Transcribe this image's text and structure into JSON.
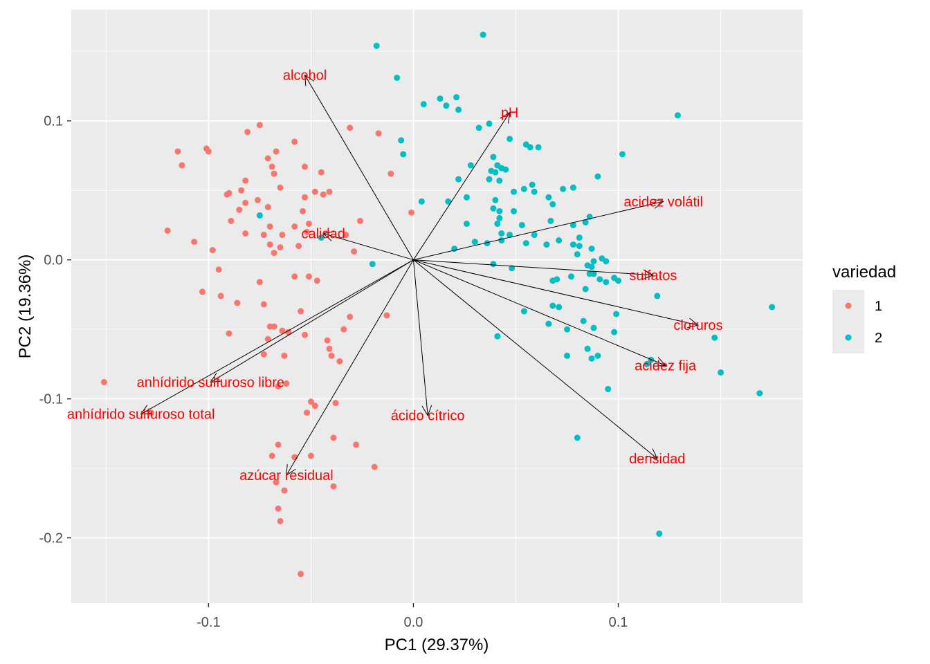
{
  "chart_data": {
    "type": "scatter",
    "subtype": "pca-biplot",
    "title": "",
    "xlabel": "PC1 (29.37%)",
    "ylabel": "PC2 (19.36%)",
    "xlim": [
      -0.167,
      0.19
    ],
    "ylim": [
      -0.247,
      0.18
    ],
    "x_ticks": [
      -0.1,
      0.0,
      0.1
    ],
    "x_tick_labels": [
      "-0.1",
      "0.0",
      "0.1"
    ],
    "y_ticks": [
      -0.2,
      -0.1,
      0.0,
      0.1
    ],
    "y_tick_labels": [
      "-0.2",
      "-0.1",
      "0.0",
      "0.1"
    ],
    "grid": true,
    "legend": {
      "title": "variedad",
      "position": "right",
      "entries": [
        {
          "label": "1",
          "color": "#F8766D"
        },
        {
          "label": "2",
          "color": "#00BFC4"
        }
      ]
    },
    "series": [
      {
        "name": "1",
        "color": "#F8766D",
        "points": [
          [
            -0.115,
            0.078
          ],
          [
            -0.113,
            0.068
          ],
          [
            -0.101,
            0.08
          ],
          [
            -0.1,
            0.078
          ],
          [
            -0.091,
            0.047
          ],
          [
            -0.09,
            0.048
          ],
          [
            -0.089,
            0.028
          ],
          [
            -0.085,
            0.036
          ],
          [
            -0.082,
            0.057
          ],
          [
            -0.084,
            0.05
          ],
          [
            -0.081,
            0.092
          ],
          [
            -0.082,
            0.041
          ],
          [
            -0.075,
            0.097
          ],
          [
            -0.071,
            0.073
          ],
          [
            -0.069,
            0.067
          ],
          [
            -0.068,
            0.062
          ],
          [
            -0.067,
            0.078
          ],
          [
            -0.065,
            0.052
          ],
          [
            -0.071,
            0.038
          ],
          [
            -0.07,
            0.024
          ],
          [
            -0.058,
            0.085
          ],
          [
            -0.053,
            0.067
          ],
          [
            -0.053,
            0.045
          ],
          [
            -0.051,
            0.026
          ],
          [
            -0.048,
            0.049
          ],
          [
            -0.045,
            0.063
          ],
          [
            -0.044,
            0.047
          ],
          [
            -0.041,
            0.049
          ],
          [
            -0.031,
            0.095
          ],
          [
            -0.017,
            0.091
          ],
          [
            -0.011,
            0.062
          ],
          [
            -0.001,
            0.034
          ],
          [
            -0.026,
            0.028
          ],
          [
            -0.033,
            0.018
          ],
          [
            -0.029,
            0.006
          ],
          [
            -0.052,
            0.02
          ],
          [
            -0.054,
            0.035
          ],
          [
            -0.056,
            0.01
          ],
          [
            -0.058,
            -0.012
          ],
          [
            -0.051,
            -0.012
          ],
          [
            -0.047,
            -0.015
          ],
          [
            -0.07,
            0.011
          ],
          [
            -0.068,
            0.005
          ],
          [
            -0.065,
            0.009
          ],
          [
            -0.064,
            0.018
          ],
          [
            -0.073,
            0.018
          ],
          [
            -0.075,
            -0.016
          ],
          [
            -0.082,
            0.019
          ],
          [
            -0.098,
            0.007
          ],
          [
            -0.12,
            0.021
          ],
          [
            -0.107,
            0.013
          ],
          [
            -0.103,
            -0.023
          ],
          [
            -0.095,
            -0.007
          ],
          [
            -0.094,
            -0.026
          ],
          [
            -0.086,
            -0.031
          ],
          [
            -0.073,
            -0.032
          ],
          [
            -0.07,
            -0.048
          ],
          [
            -0.068,
            -0.048
          ],
          [
            -0.064,
            -0.051
          ],
          [
            -0.055,
            -0.037
          ],
          [
            -0.053,
            -0.054
          ],
          [
            -0.042,
            -0.058
          ],
          [
            -0.041,
            -0.064
          ],
          [
            -0.036,
            -0.073
          ],
          [
            -0.031,
            -0.041
          ],
          [
            -0.013,
            -0.04
          ],
          [
            -0.09,
            -0.053
          ],
          [
            -0.073,
            -0.068
          ],
          [
            -0.071,
            -0.057
          ],
          [
            -0.063,
            -0.069
          ],
          [
            -0.066,
            -0.091
          ],
          [
            -0.062,
            -0.089
          ],
          [
            -0.05,
            -0.102
          ],
          [
            -0.052,
            -0.11
          ],
          [
            -0.048,
            -0.105
          ],
          [
            -0.038,
            -0.103
          ],
          [
            -0.039,
            -0.128
          ],
          [
            -0.028,
            -0.133
          ],
          [
            -0.019,
            -0.149
          ],
          [
            -0.066,
            -0.133
          ],
          [
            -0.069,
            -0.141
          ],
          [
            -0.058,
            -0.142
          ],
          [
            -0.05,
            -0.141
          ],
          [
            -0.067,
            -0.16
          ],
          [
            -0.063,
            -0.166
          ],
          [
            -0.039,
            -0.163
          ],
          [
            -0.066,
            -0.179
          ],
          [
            -0.065,
            -0.188
          ],
          [
            -0.055,
            -0.226
          ],
          [
            -0.151,
            -0.088
          ],
          [
            -0.128,
            -0.11
          ],
          [
            -0.034,
            -0.05
          ],
          [
            -0.04,
            -0.069
          ],
          [
            -0.061,
            -0.052
          ],
          [
            -0.076,
            0.043
          ],
          [
            -0.058,
            0.024
          ]
        ]
      },
      {
        "name": "2",
        "color": "#00BFC4",
        "points": [
          [
            0.034,
            0.162
          ],
          [
            -0.018,
            0.154
          ],
          [
            -0.008,
            0.131
          ],
          [
            0.013,
            0.116
          ],
          [
            0.021,
            0.117
          ],
          [
            0.016,
            0.111
          ],
          [
            0.022,
            0.108
          ],
          [
            0.005,
            0.112
          ],
          [
            -0.006,
            0.086
          ],
          [
            -0.005,
            0.076
          ],
          [
            0.032,
            0.095
          ],
          [
            0.047,
            0.087
          ],
          [
            0.055,
            0.083
          ],
          [
            0.057,
            0.081
          ],
          [
            0.061,
            0.081
          ],
          [
            0.129,
            0.104
          ],
          [
            0.102,
            0.076
          ],
          [
            0.037,
            0.098
          ],
          [
            0.028,
            0.068
          ],
          [
            0.039,
            0.074
          ],
          [
            0.041,
            0.068
          ],
          [
            0.045,
            0.065
          ],
          [
            0.04,
            0.063
          ],
          [
            0.043,
            0.066
          ],
          [
            0.038,
            0.064
          ],
          [
            0.022,
            0.058
          ],
          [
            0.037,
            0.058
          ],
          [
            0.042,
            0.057
          ],
          [
            0.058,
            0.054
          ],
          [
            0.054,
            0.051
          ],
          [
            0.073,
            0.051
          ],
          [
            0.078,
            0.052
          ],
          [
            0.09,
            0.06
          ],
          [
            0.049,
            0.049
          ],
          [
            0.059,
            0.049
          ],
          [
            0.026,
            0.045
          ],
          [
            0.04,
            0.043
          ],
          [
            0.066,
            0.045
          ],
          [
            0.068,
            0.04
          ],
          [
            0.017,
            0.042
          ],
          [
            0.004,
            0.042
          ],
          [
            0.039,
            0.037
          ],
          [
            0.042,
            0.035
          ],
          [
            0.049,
            0.035
          ],
          [
            0.042,
            0.03
          ],
          [
            0.026,
            0.026
          ],
          [
            0.041,
            0.026
          ],
          [
            0.053,
            0.025
          ],
          [
            0.067,
            0.028
          ],
          [
            0.078,
            0.025
          ],
          [
            0.084,
            0.027
          ],
          [
            0.086,
            0.031
          ],
          [
            0.043,
            0.019
          ],
          [
            0.047,
            0.018
          ],
          [
            0.059,
            0.018
          ],
          [
            0.081,
            0.016
          ],
          [
            0.078,
            0.011
          ],
          [
            0.081,
            0.01
          ],
          [
            0.071,
            0.014
          ],
          [
            0.065,
            0.011
          ],
          [
            0.055,
            0.012
          ],
          [
            0.043,
            0.014
          ],
          [
            0.036,
            0.012
          ],
          [
            0.03,
            0.013
          ],
          [
            0.02,
            0.008
          ],
          [
            0.08,
            0.004
          ],
          [
            0.087,
            0.008
          ],
          [
            0.092,
            0.001
          ],
          [
            0.088,
            -0.001
          ],
          [
            0.094,
            -0.001
          ],
          [
            0.085,
            -0.004
          ],
          [
            0.087,
            -0.005
          ],
          [
            0.086,
            -0.01
          ],
          [
            0.088,
            -0.01
          ],
          [
            0.091,
            -0.014
          ],
          [
            0.094,
            -0.016
          ],
          [
            0.098,
            -0.013
          ],
          [
            0.077,
            -0.012
          ],
          [
            0.07,
            -0.014
          ],
          [
            0.068,
            -0.015
          ],
          [
            0.084,
            -0.021
          ],
          [
            0.1,
            -0.015
          ],
          [
            0.119,
            -0.026
          ],
          [
            0.068,
            -0.033
          ],
          [
            0.071,
            -0.034
          ],
          [
            0.054,
            -0.037
          ],
          [
            0.066,
            -0.046
          ],
          [
            0.075,
            -0.05
          ],
          [
            0.088,
            -0.049
          ],
          [
            0.098,
            -0.052
          ],
          [
            0.083,
            -0.044
          ],
          [
            0.099,
            -0.039
          ],
          [
            0.085,
            -0.064
          ],
          [
            0.087,
            -0.071
          ],
          [
            0.09,
            -0.069
          ],
          [
            0.075,
            -0.069
          ],
          [
            0.095,
            -0.093
          ],
          [
            0.08,
            -0.128
          ],
          [
            0.114,
            -0.075
          ],
          [
            0.116,
            -0.072
          ],
          [
            0.147,
            -0.056
          ],
          [
            0.175,
            -0.034
          ],
          [
            0.15,
            -0.081
          ],
          [
            0.169,
            -0.096
          ],
          [
            0.12,
            -0.197
          ],
          [
            0.041,
            -0.055
          ],
          [
            -0.02,
            -0.003
          ],
          [
            -0.075,
            0.032
          ],
          [
            -0.045,
            0.016
          ],
          [
            0.048,
            -0.006
          ],
          [
            0.039,
            -0.003
          ]
        ]
      }
    ],
    "loadings": [
      {
        "name": "alcohol",
        "x": -0.053,
        "y": 0.133
      },
      {
        "name": "pH",
        "x": 0.047,
        "y": 0.106
      },
      {
        "name": "acidez volátil",
        "x": 0.122,
        "y": 0.042
      },
      {
        "name": "calidad",
        "x": -0.044,
        "y": 0.019
      },
      {
        "name": "sulfatos",
        "x": 0.117,
        "y": -0.011
      },
      {
        "name": "cloruros",
        "x": 0.139,
        "y": -0.047
      },
      {
        "name": "acidez fija",
        "x": 0.123,
        "y": -0.076
      },
      {
        "name": "densidad",
        "x": 0.119,
        "y": -0.143
      },
      {
        "name": "ácido cítrico",
        "x": 0.007,
        "y": -0.112
      },
      {
        "name": "azúcar residual",
        "x": -0.062,
        "y": -0.155
      },
      {
        "name": "anhídrido sulfuroso libre",
        "x": -0.099,
        "y": -0.088
      },
      {
        "name": "anhídrido sulfuroso total",
        "x": -0.133,
        "y": -0.111
      }
    ],
    "loading_label_color": "#FF0000",
    "arrow_color": "#000000"
  }
}
